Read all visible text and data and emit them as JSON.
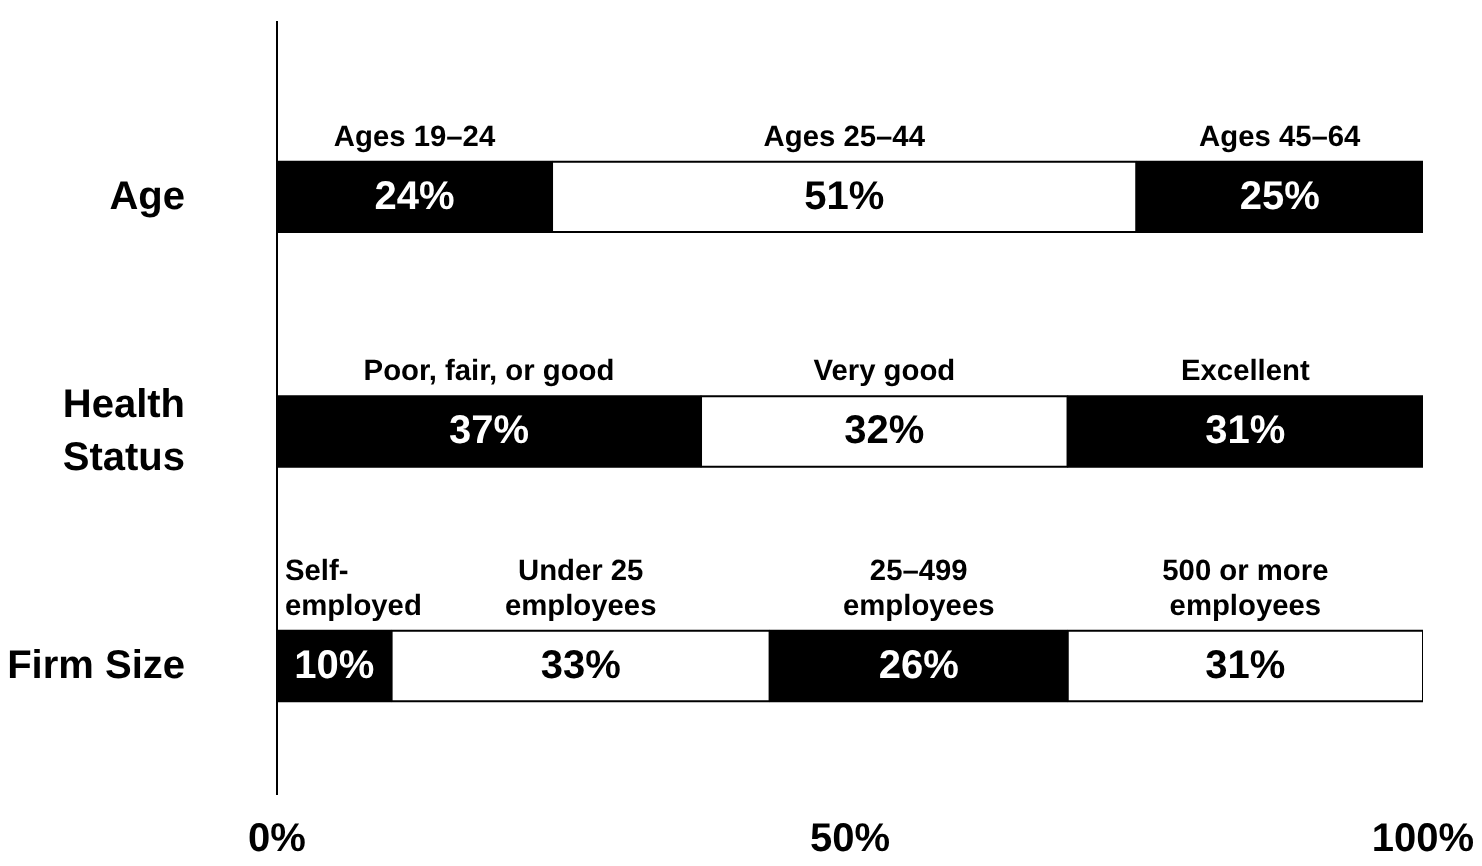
{
  "chart_data": {
    "type": "bar",
    "orientation": "horizontal",
    "stacked": true,
    "categories": [
      "Age",
      "Health\nStatus",
      "Firm Size"
    ],
    "series": [
      {
        "color": "#000000",
        "values": [
          24,
          37,
          10
        ],
        "value_labels": [
          "24%",
          "37%",
          "10%"
        ]
      },
      {
        "color": "#ffffff",
        "values": [
          51,
          32,
          33
        ],
        "value_labels": [
          "51%",
          "32%",
          "33%"
        ]
      },
      {
        "color": "#000000",
        "values": [
          25,
          31,
          26
        ],
        "value_labels": [
          "25%",
          "31%",
          "26%"
        ]
      },
      {
        "color": "#ffffff",
        "values": [
          null,
          null,
          31
        ],
        "value_labels": [
          null,
          null,
          "31%"
        ]
      }
    ],
    "xlim": [
      0,
      100
    ],
    "xticks": [
      {
        "value": 0,
        "label": "0%"
      },
      {
        "value": 50,
        "label": "50%"
      },
      {
        "value": 100,
        "label": "100%"
      }
    ],
    "annotations": [
      "Ages 19–24",
      "Ages 25–44",
      "Ages 45–64",
      "Poor, fair, or good",
      "Very good",
      "Excellent",
      "Self-\nemployed",
      "Under 25\nemployees",
      "25–499\nemployees",
      "500 or more\nemployees"
    ]
  }
}
